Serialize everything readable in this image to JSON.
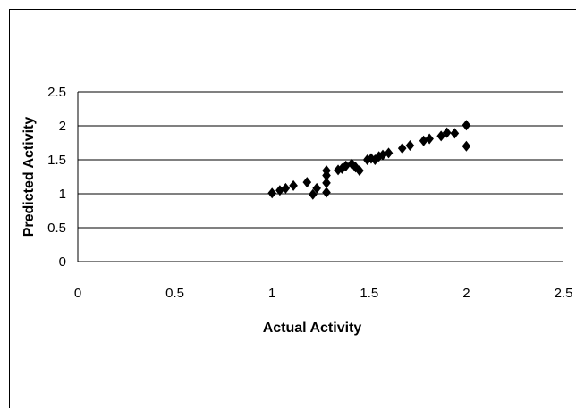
{
  "chart_data": {
    "type": "scatter",
    "title": "",
    "xlabel": "Actual Activity",
    "ylabel": "Predicted Activity",
    "xlim": [
      0,
      2.5
    ],
    "ylim": [
      0,
      2.5
    ],
    "x_ticks": [
      "0",
      "0.5",
      "1",
      "1.5",
      "2",
      "2.5"
    ],
    "y_ticks": [
      "0",
      "0.5",
      "1",
      "1.5",
      "2",
      "2.5"
    ],
    "grid": "horizontal",
    "legend": "none",
    "marker": "diamond",
    "marker_color": "#000000",
    "points": [
      {
        "x": 1.0,
        "y": 1.01
      },
      {
        "x": 1.04,
        "y": 1.05
      },
      {
        "x": 1.07,
        "y": 1.08
      },
      {
        "x": 1.11,
        "y": 1.12
      },
      {
        "x": 1.18,
        "y": 1.17
      },
      {
        "x": 1.21,
        "y": 0.99
      },
      {
        "x": 1.23,
        "y": 1.08
      },
      {
        "x": 1.28,
        "y": 1.02
      },
      {
        "x": 1.28,
        "y": 1.16
      },
      {
        "x": 1.28,
        "y": 1.27
      },
      {
        "x": 1.28,
        "y": 1.34
      },
      {
        "x": 1.34,
        "y": 1.35
      },
      {
        "x": 1.36,
        "y": 1.37
      },
      {
        "x": 1.38,
        "y": 1.41
      },
      {
        "x": 1.41,
        "y": 1.44
      },
      {
        "x": 1.43,
        "y": 1.39
      },
      {
        "x": 1.45,
        "y": 1.34
      },
      {
        "x": 1.49,
        "y": 1.5
      },
      {
        "x": 1.51,
        "y": 1.52
      },
      {
        "x": 1.53,
        "y": 1.5
      },
      {
        "x": 1.55,
        "y": 1.55
      },
      {
        "x": 1.57,
        "y": 1.57
      },
      {
        "x": 1.6,
        "y": 1.6
      },
      {
        "x": 1.67,
        "y": 1.67
      },
      {
        "x": 1.71,
        "y": 1.71
      },
      {
        "x": 1.78,
        "y": 1.78
      },
      {
        "x": 1.81,
        "y": 1.81
      },
      {
        "x": 1.87,
        "y": 1.85
      },
      {
        "x": 1.9,
        "y": 1.9
      },
      {
        "x": 1.94,
        "y": 1.89
      },
      {
        "x": 2.0,
        "y": 2.01
      },
      {
        "x": 2.0,
        "y": 1.7
      }
    ]
  }
}
